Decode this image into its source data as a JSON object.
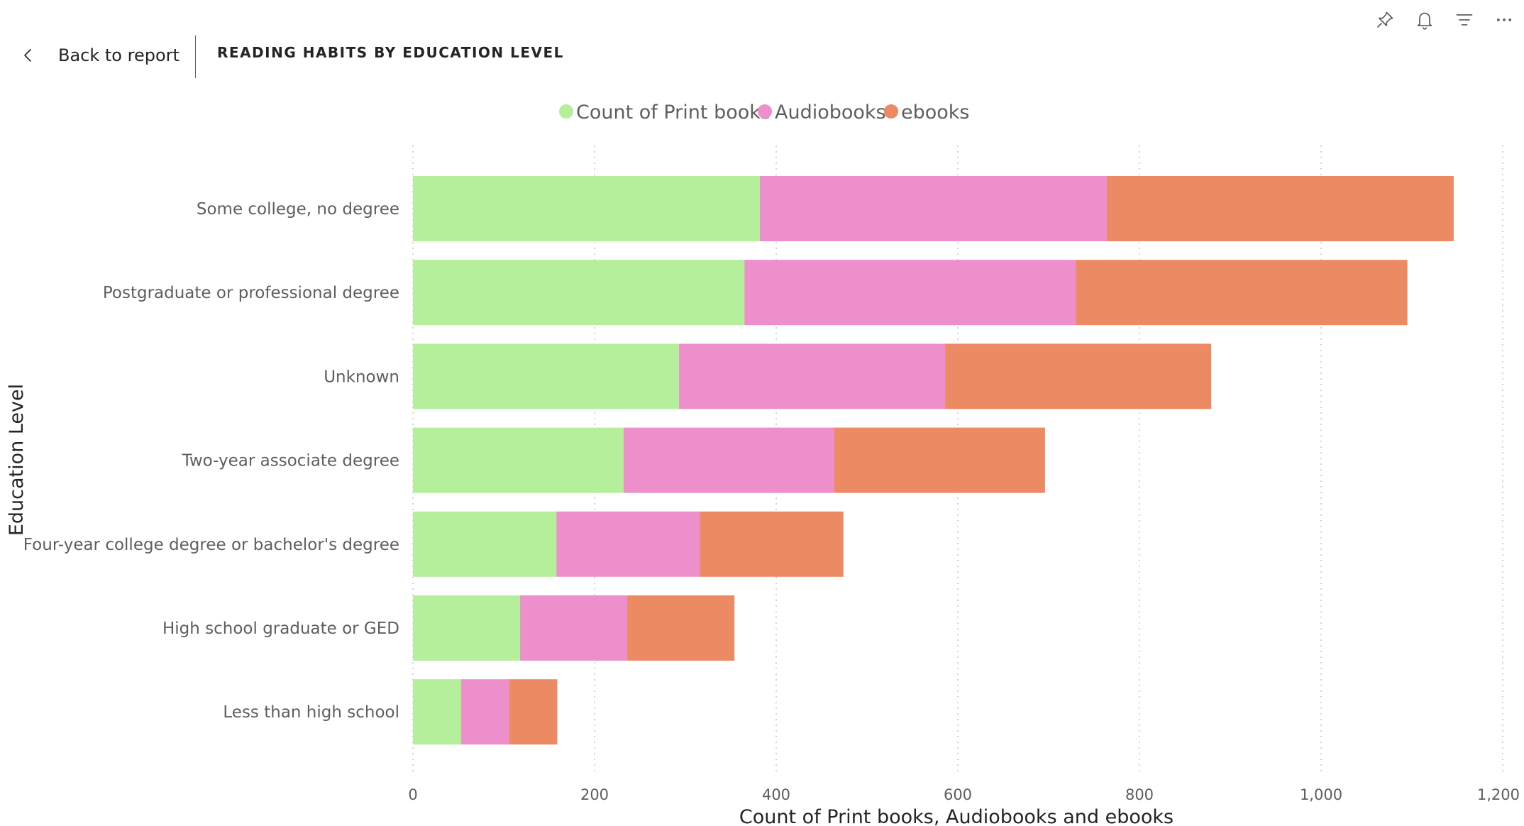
{
  "header": {
    "back_label": "Back to report",
    "title": "READING HABITS BY EDUCATION LEVEL"
  },
  "toolbar": {
    "icons": [
      "pin-icon",
      "bell-icon",
      "filter-icon",
      "more-options-icon"
    ]
  },
  "chart_data": {
    "type": "bar",
    "orientation": "horizontal",
    "stacked": true,
    "categories": [
      "Some college, no degree",
      "Postgraduate or professional degree",
      "Unknown",
      "Two-year associate degree",
      "Four-year college degree or bachelor's degree",
      "High school graduate or GED",
      "Less than high school"
    ],
    "series": [
      {
        "name": "Count of Print books",
        "color": "#b6ef9b",
        "values": [
          382,
          365,
          293,
          232,
          158,
          118,
          53
        ]
      },
      {
        "name": "Audiobooks",
        "color": "#ec8fca",
        "values": [
          382,
          365,
          293,
          232,
          158,
          118,
          53
        ]
      },
      {
        "name": "ebooks",
        "color": "#eb8a63",
        "values": [
          382,
          365,
          293,
          232,
          158,
          118,
          53
        ]
      }
    ],
    "xlabel": "Count of Print books, Audiobooks and ebooks",
    "ylabel": "Education Level",
    "xlim": [
      0,
      1200
    ],
    "xticks": [
      "0",
      "200",
      "400",
      "600",
      "800",
      "1,000",
      "1,200"
    ],
    "xtick_values": [
      0,
      200,
      400,
      600,
      800,
      1000,
      1200
    ],
    "grid": true,
    "legend_position": "top"
  }
}
